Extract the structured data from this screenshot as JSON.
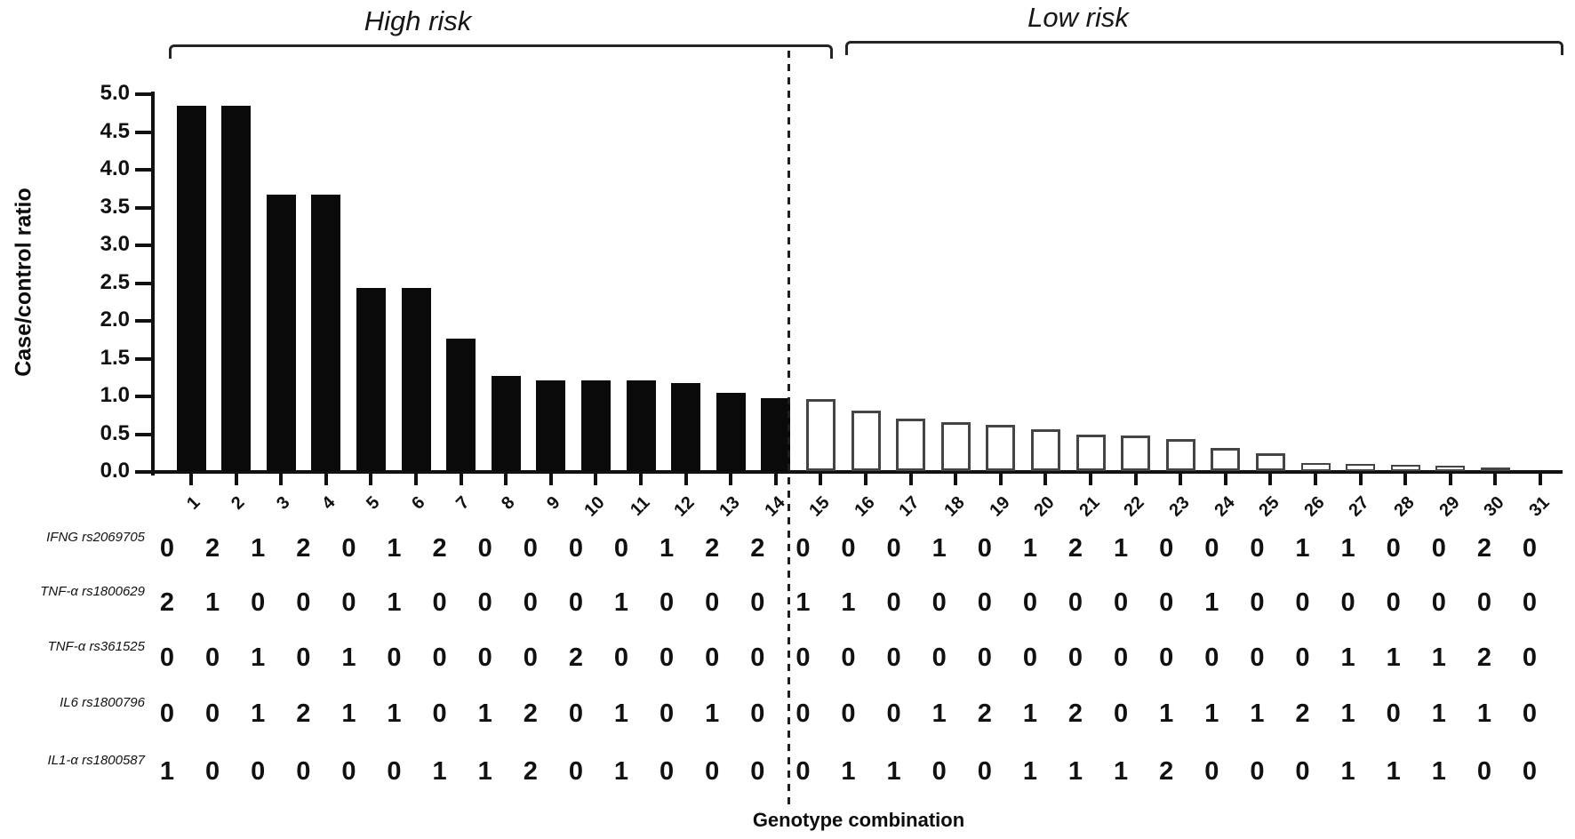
{
  "chart_data": {
    "type": "bar",
    "title": "",
    "xlabel": "Genotype combination",
    "ylabel": "Case/control ratio",
    "ylim": [
      0.0,
      5.0
    ],
    "ytick_step": 0.5,
    "ytick_labels": [
      "0.0",
      "0.5",
      "1.0",
      "1.5",
      "2.0",
      "2.5",
      "3.0",
      "3.5",
      "4.0",
      "4.5",
      "5.0"
    ],
    "categories": [
      "1",
      "2",
      "3",
      "4",
      "5",
      "6",
      "7",
      "8",
      "9",
      "10",
      "11",
      "12",
      "13",
      "14",
      "15",
      "16",
      "17",
      "18",
      "19",
      "20",
      "21",
      "22",
      "23",
      "24",
      "25",
      "26",
      "27",
      "28",
      "29",
      "30",
      "31"
    ],
    "values": [
      4.84,
      4.84,
      3.66,
      3.66,
      2.42,
      2.42,
      1.75,
      1.26,
      1.2,
      1.2,
      1.2,
      1.17,
      1.04,
      0.97,
      0.95,
      0.8,
      0.69,
      0.65,
      0.61,
      0.55,
      0.48,
      0.47,
      0.42,
      0.3,
      0.24,
      0.1,
      0.09,
      0.08,
      0.07,
      0.05,
      0.0
    ],
    "group_labels": [
      {
        "label": "High risk",
        "category_range": [
          1,
          14
        ],
        "bar_style": "filled-black"
      },
      {
        "label": "Low risk",
        "category_range": [
          15,
          31
        ],
        "bar_style": "open-white"
      }
    ],
    "separator": {
      "style": "dashed-vertical-line",
      "between_categories": [
        14,
        15
      ]
    },
    "grid": false,
    "legend": null
  },
  "genotype_table": {
    "rows": [
      {
        "label": "IFNG rs2069705",
        "values": [
          0,
          2,
          1,
          2,
          0,
          1,
          2,
          0,
          0,
          0,
          0,
          1,
          2,
          2,
          0,
          0,
          0,
          1,
          0,
          1,
          2,
          1,
          0,
          0,
          0,
          1,
          1,
          0,
          0,
          2,
          0
        ]
      },
      {
        "label": "TNF-α rs1800629",
        "values": [
          2,
          1,
          0,
          0,
          0,
          1,
          0,
          0,
          0,
          0,
          1,
          0,
          0,
          0,
          1,
          1,
          0,
          0,
          0,
          0,
          0,
          0,
          0,
          1,
          0,
          0,
          0,
          0,
          0,
          0,
          0
        ]
      },
      {
        "label": "TNF-α rs361525",
        "values": [
          0,
          0,
          1,
          0,
          1,
          0,
          0,
          0,
          0,
          2,
          0,
          0,
          0,
          0,
          0,
          0,
          0,
          0,
          0,
          0,
          0,
          0,
          0,
          0,
          0,
          0,
          1,
          1,
          1,
          2,
          0
        ]
      },
      {
        "label": "IL6 rs1800796",
        "values": [
          0,
          0,
          1,
          2,
          1,
          1,
          0,
          1,
          2,
          0,
          1,
          0,
          1,
          0,
          0,
          0,
          0,
          1,
          2,
          1,
          2,
          0,
          1,
          1,
          1,
          2,
          1,
          0,
          1,
          1,
          0
        ]
      },
      {
        "label": "IL1-α rs1800587",
        "values": [
          1,
          0,
          0,
          0,
          0,
          0,
          1,
          1,
          2,
          0,
          1,
          0,
          0,
          0,
          0,
          1,
          1,
          0,
          0,
          1,
          1,
          1,
          2,
          0,
          0,
          0,
          1,
          1,
          1,
          0,
          0
        ]
      }
    ]
  },
  "colors": {
    "bar_filled": "#0a0a0a",
    "bar_open_fill": "#ffffff",
    "bar_open_border": "#444444",
    "axis": "#111111",
    "text": "#111111"
  }
}
